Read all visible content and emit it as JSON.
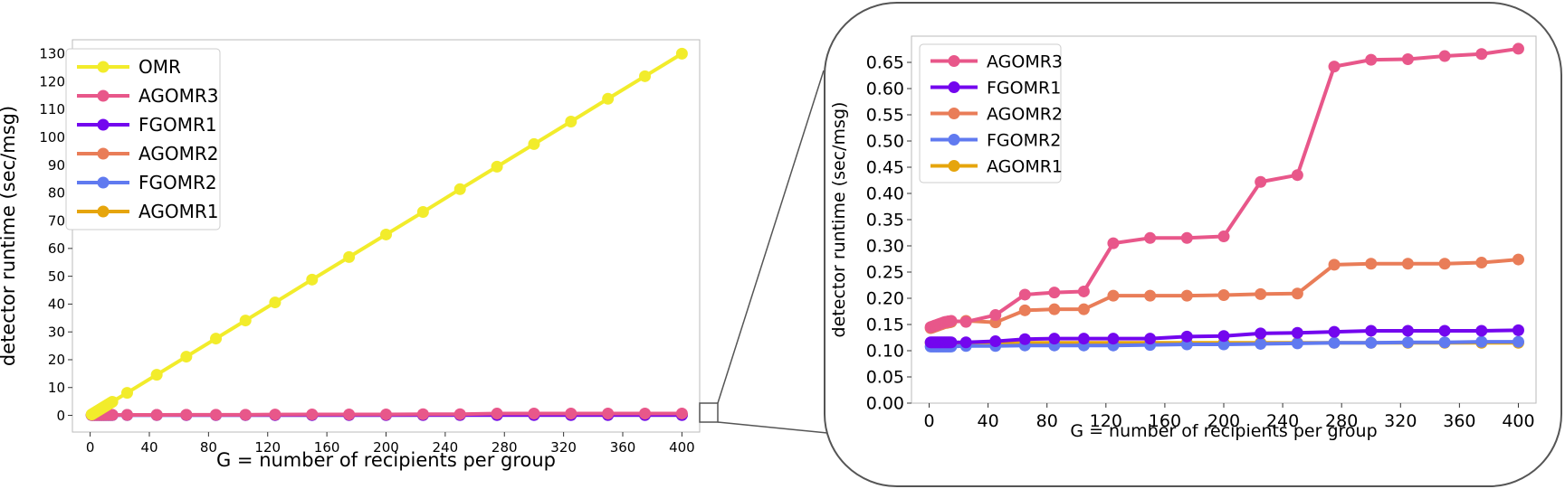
{
  "chart_data": [
    {
      "type": "line",
      "xlabel": "G = number of recipients per group",
      "ylabel": "detector runtime (sec/msg)",
      "xlim": [
        -12,
        412
      ],
      "ylim": [
        -6,
        135
      ],
      "x_ticks": [
        0,
        40,
        80,
        120,
        160,
        200,
        240,
        280,
        320,
        360,
        400
      ],
      "y_ticks": [
        0,
        10,
        20,
        30,
        40,
        50,
        60,
        70,
        80,
        90,
        100,
        110,
        120,
        130
      ],
      "grid": false,
      "legend_position": "top-left",
      "series": [
        {
          "name": "OMR",
          "color": "#f2ec2b",
          "x": [
            1,
            2,
            3,
            4,
            5,
            6,
            7,
            8,
            9,
            10,
            11,
            12,
            13,
            14,
            15,
            25,
            45,
            65,
            85,
            105,
            125,
            150,
            175,
            200,
            225,
            250,
            275,
            300,
            325,
            350,
            375,
            400
          ],
          "y": [
            0.33,
            0.65,
            0.98,
            1.3,
            1.63,
            1.95,
            2.28,
            2.6,
            2.93,
            3.25,
            3.58,
            3.9,
            4.23,
            4.55,
            4.88,
            8.1,
            14.6,
            21.1,
            27.6,
            34.1,
            40.6,
            48.8,
            56.9,
            65.0,
            73.1,
            81.3,
            89.4,
            97.5,
            105.6,
            113.8,
            121.9,
            130.0
          ]
        },
        {
          "name": "AGOMR3",
          "color": "#e8578a",
          "x": [
            1,
            2,
            3,
            4,
            5,
            6,
            7,
            8,
            9,
            10,
            11,
            12,
            13,
            14,
            15,
            25,
            45,
            65,
            85,
            105,
            125,
            150,
            175,
            200,
            225,
            250,
            275,
            300,
            325,
            350,
            375,
            400
          ],
          "y": [
            0.145,
            0.146,
            0.147,
            0.148,
            0.149,
            0.15,
            0.151,
            0.152,
            0.153,
            0.154,
            0.155,
            0.155,
            0.156,
            0.156,
            0.157,
            0.155,
            0.168,
            0.207,
            0.211,
            0.213,
            0.305,
            0.315,
            0.315,
            0.318,
            0.422,
            0.435,
            0.642,
            0.655,
            0.656,
            0.662,
            0.666,
            0.676
          ]
        },
        {
          "name": "FGOMR1",
          "color": "#7306ee",
          "x": [
            1,
            2,
            3,
            4,
            5,
            6,
            7,
            8,
            9,
            10,
            11,
            12,
            13,
            14,
            15,
            25,
            45,
            65,
            85,
            105,
            125,
            150,
            175,
            200,
            225,
            250,
            275,
            300,
            325,
            350,
            375,
            400
          ],
          "y": [
            0.116,
            0.116,
            0.116,
            0.116,
            0.116,
            0.116,
            0.116,
            0.116,
            0.116,
            0.116,
            0.116,
            0.116,
            0.116,
            0.116,
            0.116,
            0.116,
            0.118,
            0.122,
            0.123,
            0.123,
            0.123,
            0.123,
            0.127,
            0.128,
            0.133,
            0.134,
            0.136,
            0.138,
            0.138,
            0.138,
            0.138,
            0.139
          ]
        },
        {
          "name": "AGOMR2",
          "color": "#e97d58",
          "x": [
            1,
            2,
            3,
            4,
            5,
            6,
            7,
            8,
            9,
            10,
            11,
            12,
            13,
            14,
            15,
            25,
            45,
            65,
            85,
            105,
            125,
            150,
            175,
            200,
            225,
            250,
            275,
            300,
            325,
            350,
            375,
            400
          ],
          "y": [
            0.143,
            0.144,
            0.145,
            0.146,
            0.147,
            0.148,
            0.149,
            0.15,
            0.151,
            0.152,
            0.153,
            0.153,
            0.154,
            0.154,
            0.155,
            0.157,
            0.154,
            0.177,
            0.179,
            0.179,
            0.205,
            0.205,
            0.205,
            0.206,
            0.208,
            0.209,
            0.264,
            0.266,
            0.266,
            0.266,
            0.268,
            0.274
          ]
        },
        {
          "name": "FGOMR2",
          "color": "#607af0",
          "x": [
            1,
            2,
            3,
            4,
            5,
            6,
            7,
            8,
            9,
            10,
            11,
            12,
            13,
            14,
            15,
            25,
            45,
            65,
            85,
            105,
            125,
            150,
            175,
            200,
            225,
            250,
            275,
            300,
            325,
            350,
            375,
            400
          ],
          "y": [
            0.108,
            0.108,
            0.108,
            0.108,
            0.108,
            0.108,
            0.108,
            0.108,
            0.108,
            0.108,
            0.108,
            0.108,
            0.108,
            0.108,
            0.108,
            0.109,
            0.109,
            0.11,
            0.11,
            0.11,
            0.11,
            0.111,
            0.112,
            0.112,
            0.113,
            0.114,
            0.115,
            0.115,
            0.116,
            0.116,
            0.117,
            0.117
          ]
        },
        {
          "name": "AGOMR1",
          "color": "#e6a50c",
          "x": [
            1,
            2,
            3,
            4,
            5,
            6,
            7,
            8,
            9,
            10,
            11,
            12,
            13,
            14,
            15,
            25,
            45,
            65,
            85,
            105,
            125,
            150,
            175,
            200,
            225,
            250,
            275,
            300,
            325,
            350,
            375,
            400
          ],
          "y": [
            0.115,
            0.115,
            0.115,
            0.115,
            0.115,
            0.115,
            0.115,
            0.115,
            0.115,
            0.115,
            0.115,
            0.115,
            0.115,
            0.115,
            0.115,
            0.115,
            0.115,
            0.115,
            0.115,
            0.115,
            0.115,
            0.115,
            0.115,
            0.115,
            0.115,
            0.115,
            0.115,
            0.115,
            0.115,
            0.115,
            0.115,
            0.115
          ]
        }
      ]
    },
    {
      "type": "line",
      "xlabel": "G = number of recipients per group",
      "ylabel": "detector runtime (sec/msg)",
      "xlim": [
        -12,
        412
      ],
      "ylim": [
        0,
        0.7
      ],
      "x_ticks": [
        0,
        40,
        80,
        120,
        160,
        200,
        240,
        280,
        320,
        360,
        400
      ],
      "y_ticks": [
        "0.00",
        "0.05",
        "0.10",
        "0.15",
        "0.20",
        "0.25",
        "0.30",
        "0.35",
        "0.40",
        "0.45",
        "0.50",
        "0.55",
        "0.60",
        "0.65"
      ],
      "grid": false,
      "legend_position": "top-left",
      "legend_order": [
        "AGOMR3",
        "FGOMR1",
        "AGOMR2",
        "FGOMR2",
        "AGOMR1"
      ],
      "inset_of": "left plot, y near 0"
    }
  ]
}
